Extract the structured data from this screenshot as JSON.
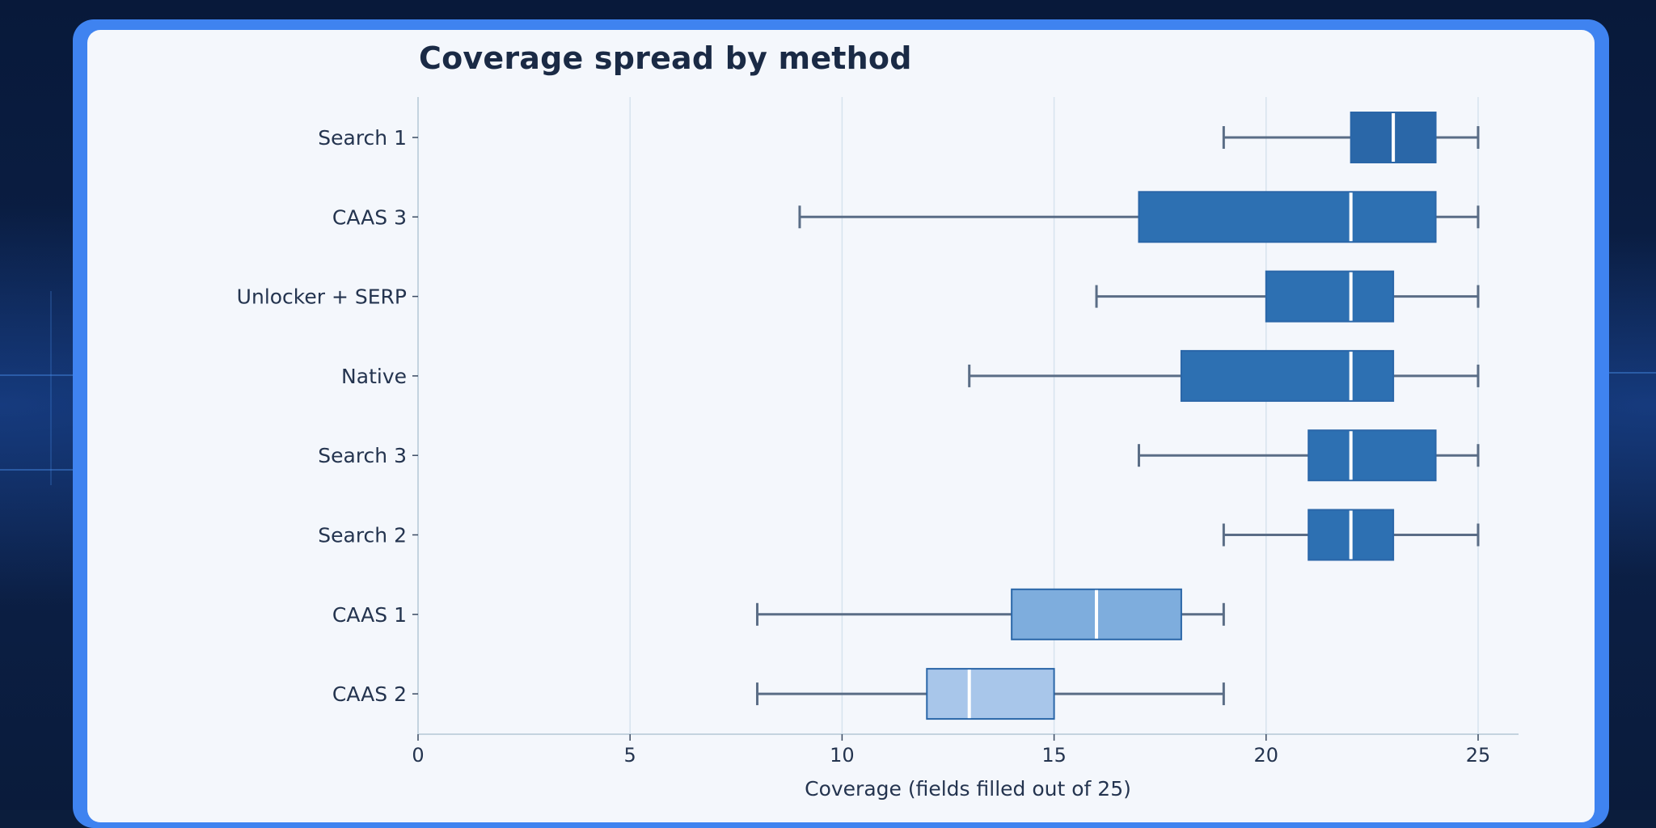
{
  "chart_data": {
    "type": "boxplot",
    "title": "Coverage spread by method",
    "xlabel": "Coverage (fields filled out of 25)",
    "ylabel": "",
    "xlim": [
      0,
      26
    ],
    "xticks": [
      0,
      5,
      10,
      15,
      20,
      25
    ],
    "grid": "vertical",
    "orientation": "horizontal",
    "series": [
      {
        "name": "Search 1",
        "whisker_low": 19,
        "q1": 22,
        "median": 23,
        "q3": 24,
        "whisker_high": 25,
        "color": "#2a67a8"
      },
      {
        "name": "CAAS 3",
        "whisker_low": 9,
        "q1": 17,
        "median": 22,
        "q3": 24,
        "whisker_high": 25,
        "color": "#2d70b2"
      },
      {
        "name": "Unlocker + SERP",
        "whisker_low": 16,
        "q1": 20,
        "median": 22,
        "q3": 23,
        "whisker_high": 25,
        "color": "#2d70b2"
      },
      {
        "name": "Native",
        "whisker_low": 13,
        "q1": 18,
        "median": 22,
        "q3": 23,
        "whisker_high": 25,
        "color": "#2d70b2"
      },
      {
        "name": "Search 3",
        "whisker_low": 17,
        "q1": 21,
        "median": 22,
        "q3": 24,
        "whisker_high": 25,
        "color": "#2d70b2"
      },
      {
        "name": "Search 2",
        "whisker_low": 19,
        "q1": 21,
        "median": 22,
        "q3": 23,
        "whisker_high": 25,
        "color": "#2d70b2"
      },
      {
        "name": "CAAS 1",
        "whisker_low": 8,
        "q1": 14,
        "median": 16,
        "q3": 18,
        "whisker_high": 19,
        "color": "#7eaddd"
      },
      {
        "name": "CAAS 2",
        "whisker_low": 8,
        "q1": 12,
        "median": 13,
        "q3": 15,
        "whisker_high": 19,
        "color": "#a8c6ea"
      }
    ]
  }
}
